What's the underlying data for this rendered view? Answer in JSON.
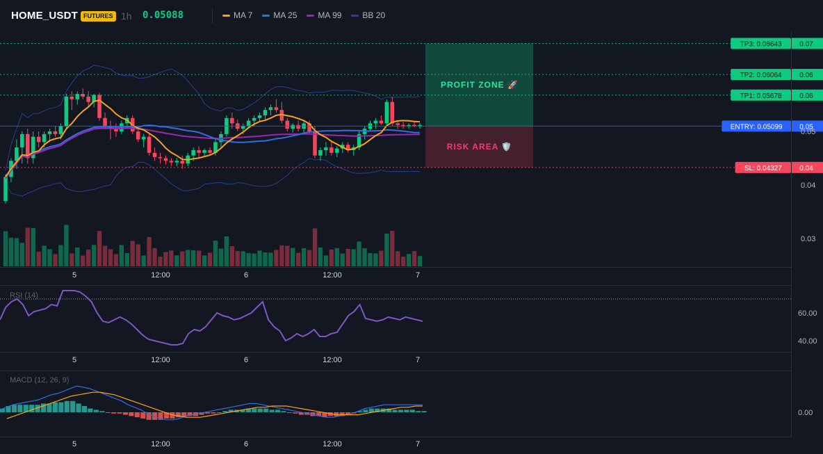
{
  "header": {
    "symbol": "HOME_USDT",
    "badge": "FUTURES",
    "timeframe": "1h",
    "price": "0.05088",
    "legend": [
      {
        "label": "MA 7",
        "color": "#f7a21b"
      },
      {
        "label": "MA 25",
        "color": "#2f6fe4"
      },
      {
        "label": "MA 99",
        "color": "#9c27b0"
      },
      {
        "label": "BB 20",
        "color": "#2a3f8f"
      }
    ]
  },
  "chart_data": {
    "type": "candlestick",
    "x_ticks": [
      "5",
      "12:00",
      "6",
      "12:00",
      "7"
    ],
    "price_axis_labels": [
      "0.05",
      "0.04",
      "0.03"
    ],
    "candles": [
      [
        0.037,
        0.042,
        0.0365,
        0.0415
      ],
      [
        0.0415,
        0.045,
        0.0405,
        0.0445
      ],
      [
        0.0445,
        0.0485,
        0.043,
        0.047
      ],
      [
        0.047,
        0.05,
        0.044,
        0.0495
      ],
      [
        0.0495,
        0.0505,
        0.044,
        0.045
      ],
      [
        0.045,
        0.05,
        0.044,
        0.049
      ],
      [
        0.049,
        0.05,
        0.047,
        0.048
      ],
      [
        0.048,
        0.05,
        0.047,
        0.0495
      ],
      [
        0.0495,
        0.0505,
        0.048,
        0.05
      ],
      [
        0.05,
        0.051,
        0.049,
        0.0495
      ],
      [
        0.0495,
        0.0515,
        0.0485,
        0.051
      ],
      [
        0.051,
        0.057,
        0.0505,
        0.0565
      ],
      [
        0.0565,
        0.0575,
        0.054,
        0.056
      ],
      [
        0.056,
        0.0575,
        0.055,
        0.057
      ],
      [
        0.057,
        0.058,
        0.056,
        0.0565
      ],
      [
        0.0565,
        0.0575,
        0.0545,
        0.0555
      ],
      [
        0.0555,
        0.057,
        0.0545,
        0.0568
      ],
      [
        0.0568,
        0.0572,
        0.052,
        0.0525
      ],
      [
        0.0525,
        0.0535,
        0.0505,
        0.051
      ],
      [
        0.051,
        0.052,
        0.0485,
        0.0505
      ],
      [
        0.0505,
        0.0515,
        0.049,
        0.05
      ],
      [
        0.05,
        0.052,
        0.0495,
        0.0515
      ],
      [
        0.0515,
        0.053,
        0.0505,
        0.0525
      ],
      [
        0.0525,
        0.053,
        0.0495,
        0.05
      ],
      [
        0.05,
        0.051,
        0.048,
        0.0485
      ],
      [
        0.0485,
        0.0495,
        0.047,
        0.049
      ],
      [
        0.049,
        0.0495,
        0.0455,
        0.046
      ],
      [
        0.046,
        0.047,
        0.0445,
        0.0452
      ],
      [
        0.0452,
        0.046,
        0.044,
        0.045
      ],
      [
        0.045,
        0.0455,
        0.0438,
        0.0445
      ],
      [
        0.0445,
        0.045,
        0.0435,
        0.0442
      ],
      [
        0.0442,
        0.045,
        0.0435,
        0.0445
      ],
      [
        0.0445,
        0.0455,
        0.043,
        0.044
      ],
      [
        0.044,
        0.046,
        0.0435,
        0.0455
      ],
      [
        0.0455,
        0.047,
        0.0445,
        0.0465
      ],
      [
        0.0465,
        0.0472,
        0.045,
        0.046
      ],
      [
        0.046,
        0.0468,
        0.0452,
        0.0465
      ],
      [
        0.0465,
        0.047,
        0.0455,
        0.046
      ],
      [
        0.046,
        0.0485,
        0.0455,
        0.048
      ],
      [
        0.048,
        0.05,
        0.047,
        0.0495
      ],
      [
        0.0495,
        0.053,
        0.049,
        0.0525
      ],
      [
        0.0525,
        0.0535,
        0.0505,
        0.0515
      ],
      [
        0.0515,
        0.0522,
        0.05,
        0.0505
      ],
      [
        0.0505,
        0.0515,
        0.0495,
        0.051
      ],
      [
        0.051,
        0.0525,
        0.0505,
        0.052
      ],
      [
        0.052,
        0.053,
        0.051,
        0.0525
      ],
      [
        0.0525,
        0.0535,
        0.0518,
        0.053
      ],
      [
        0.053,
        0.0545,
        0.052,
        0.054
      ],
      [
        0.054,
        0.055,
        0.053,
        0.0545
      ],
      [
        0.0545,
        0.056,
        0.0535,
        0.054
      ],
      [
        0.054,
        0.0555,
        0.0515,
        0.052
      ],
      [
        0.052,
        0.0525,
        0.05,
        0.0505
      ],
      [
        0.0505,
        0.0515,
        0.0498,
        0.0512
      ],
      [
        0.0512,
        0.052,
        0.05,
        0.0505
      ],
      [
        0.0505,
        0.052,
        0.0495,
        0.0515
      ],
      [
        0.0515,
        0.052,
        0.0495,
        0.05
      ],
      [
        0.05,
        0.051,
        0.045,
        0.0455
      ],
      [
        0.0455,
        0.047,
        0.0445,
        0.0465
      ],
      [
        0.0465,
        0.048,
        0.0455,
        0.047
      ],
      [
        0.047,
        0.0482,
        0.0455,
        0.046
      ],
      [
        0.046,
        0.0472,
        0.0452,
        0.0468
      ],
      [
        0.0468,
        0.048,
        0.046,
        0.0475
      ],
      [
        0.0475,
        0.048,
        0.046,
        0.0465
      ],
      [
        0.0465,
        0.0475,
        0.0455,
        0.047
      ],
      [
        0.047,
        0.05,
        0.0465,
        0.0495
      ],
      [
        0.0495,
        0.051,
        0.0485,
        0.0505
      ],
      [
        0.0505,
        0.052,
        0.05,
        0.0515
      ],
      [
        0.0515,
        0.0525,
        0.0505,
        0.052
      ],
      [
        0.052,
        0.053,
        0.0512,
        0.0515
      ],
      [
        0.0515,
        0.056,
        0.051,
        0.0555
      ],
      [
        0.0555,
        0.0565,
        0.051,
        0.0515
      ],
      [
        0.0515,
        0.052,
        0.0505,
        0.0512
      ],
      [
        0.0512,
        0.0518,
        0.0505,
        0.051
      ],
      [
        0.051,
        0.0515,
        0.0505,
        0.0512
      ],
      [
        0.0512,
        0.0518,
        0.0508,
        0.051
      ],
      [
        0.051,
        0.0516,
        0.0505,
        0.0512
      ]
    ],
    "levels": [
      {
        "label": "TP3: 0.06643",
        "axis": "0.07",
        "price": 0.06643,
        "color": "#0ecb81"
      },
      {
        "label": "TP2: 0.06064",
        "axis": "0.06",
        "price": 0.06064,
        "color": "#0ecb81"
      },
      {
        "label": "TP1: 0.05678",
        "axis": "0.06",
        "price": 0.05678,
        "color": "#0ecb81"
      },
      {
        "label": "ENTRY: 0.05099",
        "axis": "0.05",
        "price": 0.05099,
        "color": "#2962ff"
      },
      {
        "label": "SL: 0.04327",
        "axis": "0.04",
        "price": 0.04327,
        "color": "#f6465d"
      }
    ],
    "profit_zone_label": "PROFIT ZONE 🚀",
    "risk_area_label": "RISK AREA 🛡️",
    "rsi": {
      "label": "RSI (14)",
      "axis_labels": [
        "60.00",
        "40.00"
      ],
      "values": [
        55,
        64,
        68,
        70,
        66,
        58,
        61,
        62,
        63,
        66,
        65,
        76,
        76,
        76,
        75,
        72,
        68,
        60,
        54,
        53,
        55,
        57,
        55,
        52,
        48,
        44,
        41,
        40,
        39,
        38,
        37,
        37,
        38,
        45,
        48,
        47,
        50,
        55,
        60,
        58,
        57,
        55,
        56,
        58,
        60,
        64,
        68,
        55,
        50,
        47,
        40,
        42,
        45,
        43,
        45,
        48,
        43,
        43,
        45,
        46,
        52,
        58,
        61,
        66,
        56,
        55,
        54,
        55,
        57,
        56,
        55,
        57,
        56,
        55,
        54
      ]
    },
    "macd": {
      "label": "MACD (12, 26, 9)",
      "axis_labels": [
        "0.00"
      ],
      "histogram": [
        0.3,
        0.5,
        0.6,
        0.6,
        0.6,
        0.6,
        0.6,
        0.7,
        0.7,
        0.8,
        0.8,
        0.9,
        0.9,
        0.7,
        0.5,
        0.3,
        0.2,
        0.1,
        0.0,
        -0.1,
        -0.1,
        -0.2,
        -0.3,
        -0.4,
        -0.5,
        -0.6,
        -0.6,
        -0.6,
        -0.5,
        -0.5,
        -0.4,
        -0.4,
        -0.3,
        -0.3,
        -0.2,
        -0.1,
        -0.1,
        0.0,
        0.1,
        0.2,
        0.2,
        0.2,
        0.3,
        0.3,
        0.3,
        0.3,
        0.2,
        0.2,
        0.1,
        0.0,
        -0.1,
        -0.2,
        -0.2,
        -0.3,
        -0.3,
        -0.4,
        -0.3,
        -0.3,
        -0.3,
        -0.2,
        -0.1,
        0.1,
        0.2,
        0.3,
        0.3,
        0.3,
        0.3,
        0.2,
        0.2,
        0.2,
        0.2,
        0.1,
        0.1
      ],
      "macd": [
        0.2,
        0.4,
        0.6,
        0.7,
        0.8,
        0.9,
        1.0,
        1.2,
        1.4,
        1.5,
        1.7,
        1.9,
        2.1,
        2.0,
        1.9,
        1.7,
        1.5,
        1.3,
        1.1,
        0.9,
        0.6,
        0.4,
        0.2,
        -0.1,
        -0.3,
        -0.5,
        -0.6,
        -0.6,
        -0.5,
        -0.3,
        -0.2,
        -0.1,
        0.0,
        0.1,
        0.2,
        0.3,
        0.4,
        0.5,
        0.6,
        0.7,
        0.7,
        0.6,
        0.5,
        0.4,
        0.3,
        0.2,
        0.1,
        0.0,
        -0.1,
        -0.2,
        -0.3,
        -0.4,
        -0.4,
        -0.3,
        -0.2,
        -0.1,
        0.1,
        0.3,
        0.4,
        0.5,
        0.6,
        0.6,
        0.6,
        0.6,
        0.6,
        0.6,
        0.6
      ],
      "signal": [
        -0.5,
        -0.3,
        -0.1,
        0.1,
        0.3,
        0.5,
        0.7,
        0.9,
        1.1,
        1.3,
        1.4,
        1.5,
        1.6,
        1.6,
        1.5,
        1.4,
        1.2,
        1.0,
        0.8,
        0.6,
        0.4,
        0.2,
        0.0,
        -0.2,
        -0.3,
        -0.4,
        -0.4,
        -0.4,
        -0.3,
        -0.2,
        -0.1,
        0.0,
        0.1,
        0.2,
        0.3,
        0.4,
        0.4,
        0.5,
        0.5,
        0.5,
        0.4,
        0.3,
        0.2,
        0.1,
        0.0,
        -0.1,
        -0.2,
        -0.2,
        -0.2,
        -0.2,
        -0.1,
        0.0,
        0.1,
        0.2,
        0.3,
        0.4,
        0.4,
        0.5,
        0.5
      ]
    }
  }
}
